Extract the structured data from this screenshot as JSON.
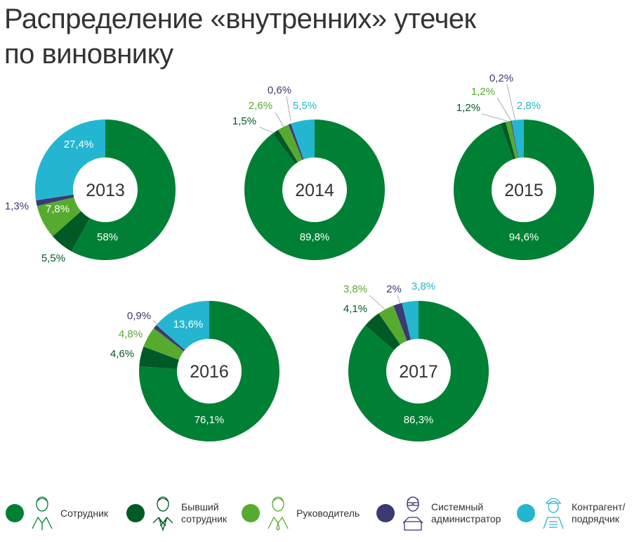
{
  "title_line1": "Распределение «внутренних» утечек",
  "title_line2": "по виновнику",
  "chart_data": {
    "type": "pie",
    "title": "Распределение «внутренних» утечек по виновнику",
    "categories": [
      "Сотрудник",
      "Бывший сотрудник",
      "Руководитель",
      "Системный администратор",
      "Контрагент/ подрядчик"
    ],
    "colors": [
      "#008035",
      "#005a26",
      "#56ab2f",
      "#3c3a72",
      "#24b6d0"
    ],
    "charts": [
      {
        "year": "2013",
        "values": [
          58,
          5.5,
          7.8,
          1.3,
          27.4
        ],
        "labels": [
          "58%",
          "5,5%",
          "7,8%",
          "1,3%",
          "27,4%"
        ]
      },
      {
        "year": "2014",
        "values": [
          89.8,
          1.5,
          2.6,
          0.6,
          5.5
        ],
        "labels": [
          "89,8%",
          "1,5%",
          "2,6%",
          "0,6%",
          "5,5%"
        ]
      },
      {
        "year": "2015",
        "values": [
          94.6,
          1.2,
          1.2,
          0.2,
          2.8
        ],
        "labels": [
          "94,6%",
          "1,2%",
          "1,2%",
          "0,2%",
          "2,8%"
        ]
      },
      {
        "year": "2016",
        "values": [
          76.1,
          4.6,
          4.8,
          0.9,
          13.6
        ],
        "labels": [
          "76,1%",
          "4,6%",
          "4,8%",
          "0,9%",
          "13,6%"
        ]
      },
      {
        "year": "2017",
        "values": [
          86.3,
          4.1,
          3.8,
          2,
          3.8
        ],
        "labels": [
          "86,3%",
          "4,1%",
          "3,8%",
          "2%",
          "3,8%"
        ]
      }
    ]
  },
  "legend": [
    {
      "label": "Сотрудник",
      "icon": "employee-icon"
    },
    {
      "label": "Бывший\nсотрудник",
      "icon": "former-employee-icon"
    },
    {
      "label": "Руководитель",
      "icon": "manager-icon"
    },
    {
      "label": "Системный\nадминистратор",
      "icon": "sysadmin-icon"
    },
    {
      "label": "Контрагент/\nподрядчик",
      "icon": "contractor-icon"
    }
  ]
}
